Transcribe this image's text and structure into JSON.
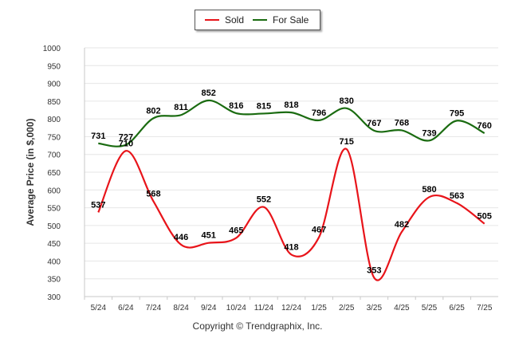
{
  "legend": {
    "sold_label": "Sold",
    "for_sale_label": "For Sale"
  },
  "footer": {
    "copyright": "Copyright © Trendgraphix, Inc."
  },
  "colors": {
    "sold": "#e8141a",
    "for_sale": "#1a6b10",
    "grid": "#e6e6e6",
    "axis": "#c8c8c8"
  },
  "chart_data": {
    "type": "line",
    "ylabel": "Average Price (in $,000)",
    "xlabel": "",
    "ylim": [
      300,
      1000
    ],
    "yticks": [
      300,
      350,
      400,
      450,
      500,
      550,
      600,
      650,
      700,
      750,
      800,
      850,
      900,
      950,
      1000
    ],
    "categories": [
      "5/24",
      "6/24",
      "7/24",
      "8/24",
      "9/24",
      "10/24",
      "11/24",
      "12/24",
      "1/25",
      "2/25",
      "3/25",
      "4/25",
      "5/25",
      "6/25",
      "7/25"
    ],
    "grid": true,
    "legend_position": "top-center",
    "series": [
      {
        "name": "Sold",
        "color": "#e8141a",
        "values": [
          537,
          710,
          568,
          446,
          451,
          465,
          552,
          418,
          467,
          715,
          353,
          482,
          580,
          563,
          505
        ]
      },
      {
        "name": "For Sale",
        "color": "#1a6b10",
        "values": [
          731,
          727,
          802,
          811,
          852,
          816,
          815,
          818,
          796,
          830,
          767,
          768,
          739,
          795,
          760
        ]
      }
    ]
  }
}
